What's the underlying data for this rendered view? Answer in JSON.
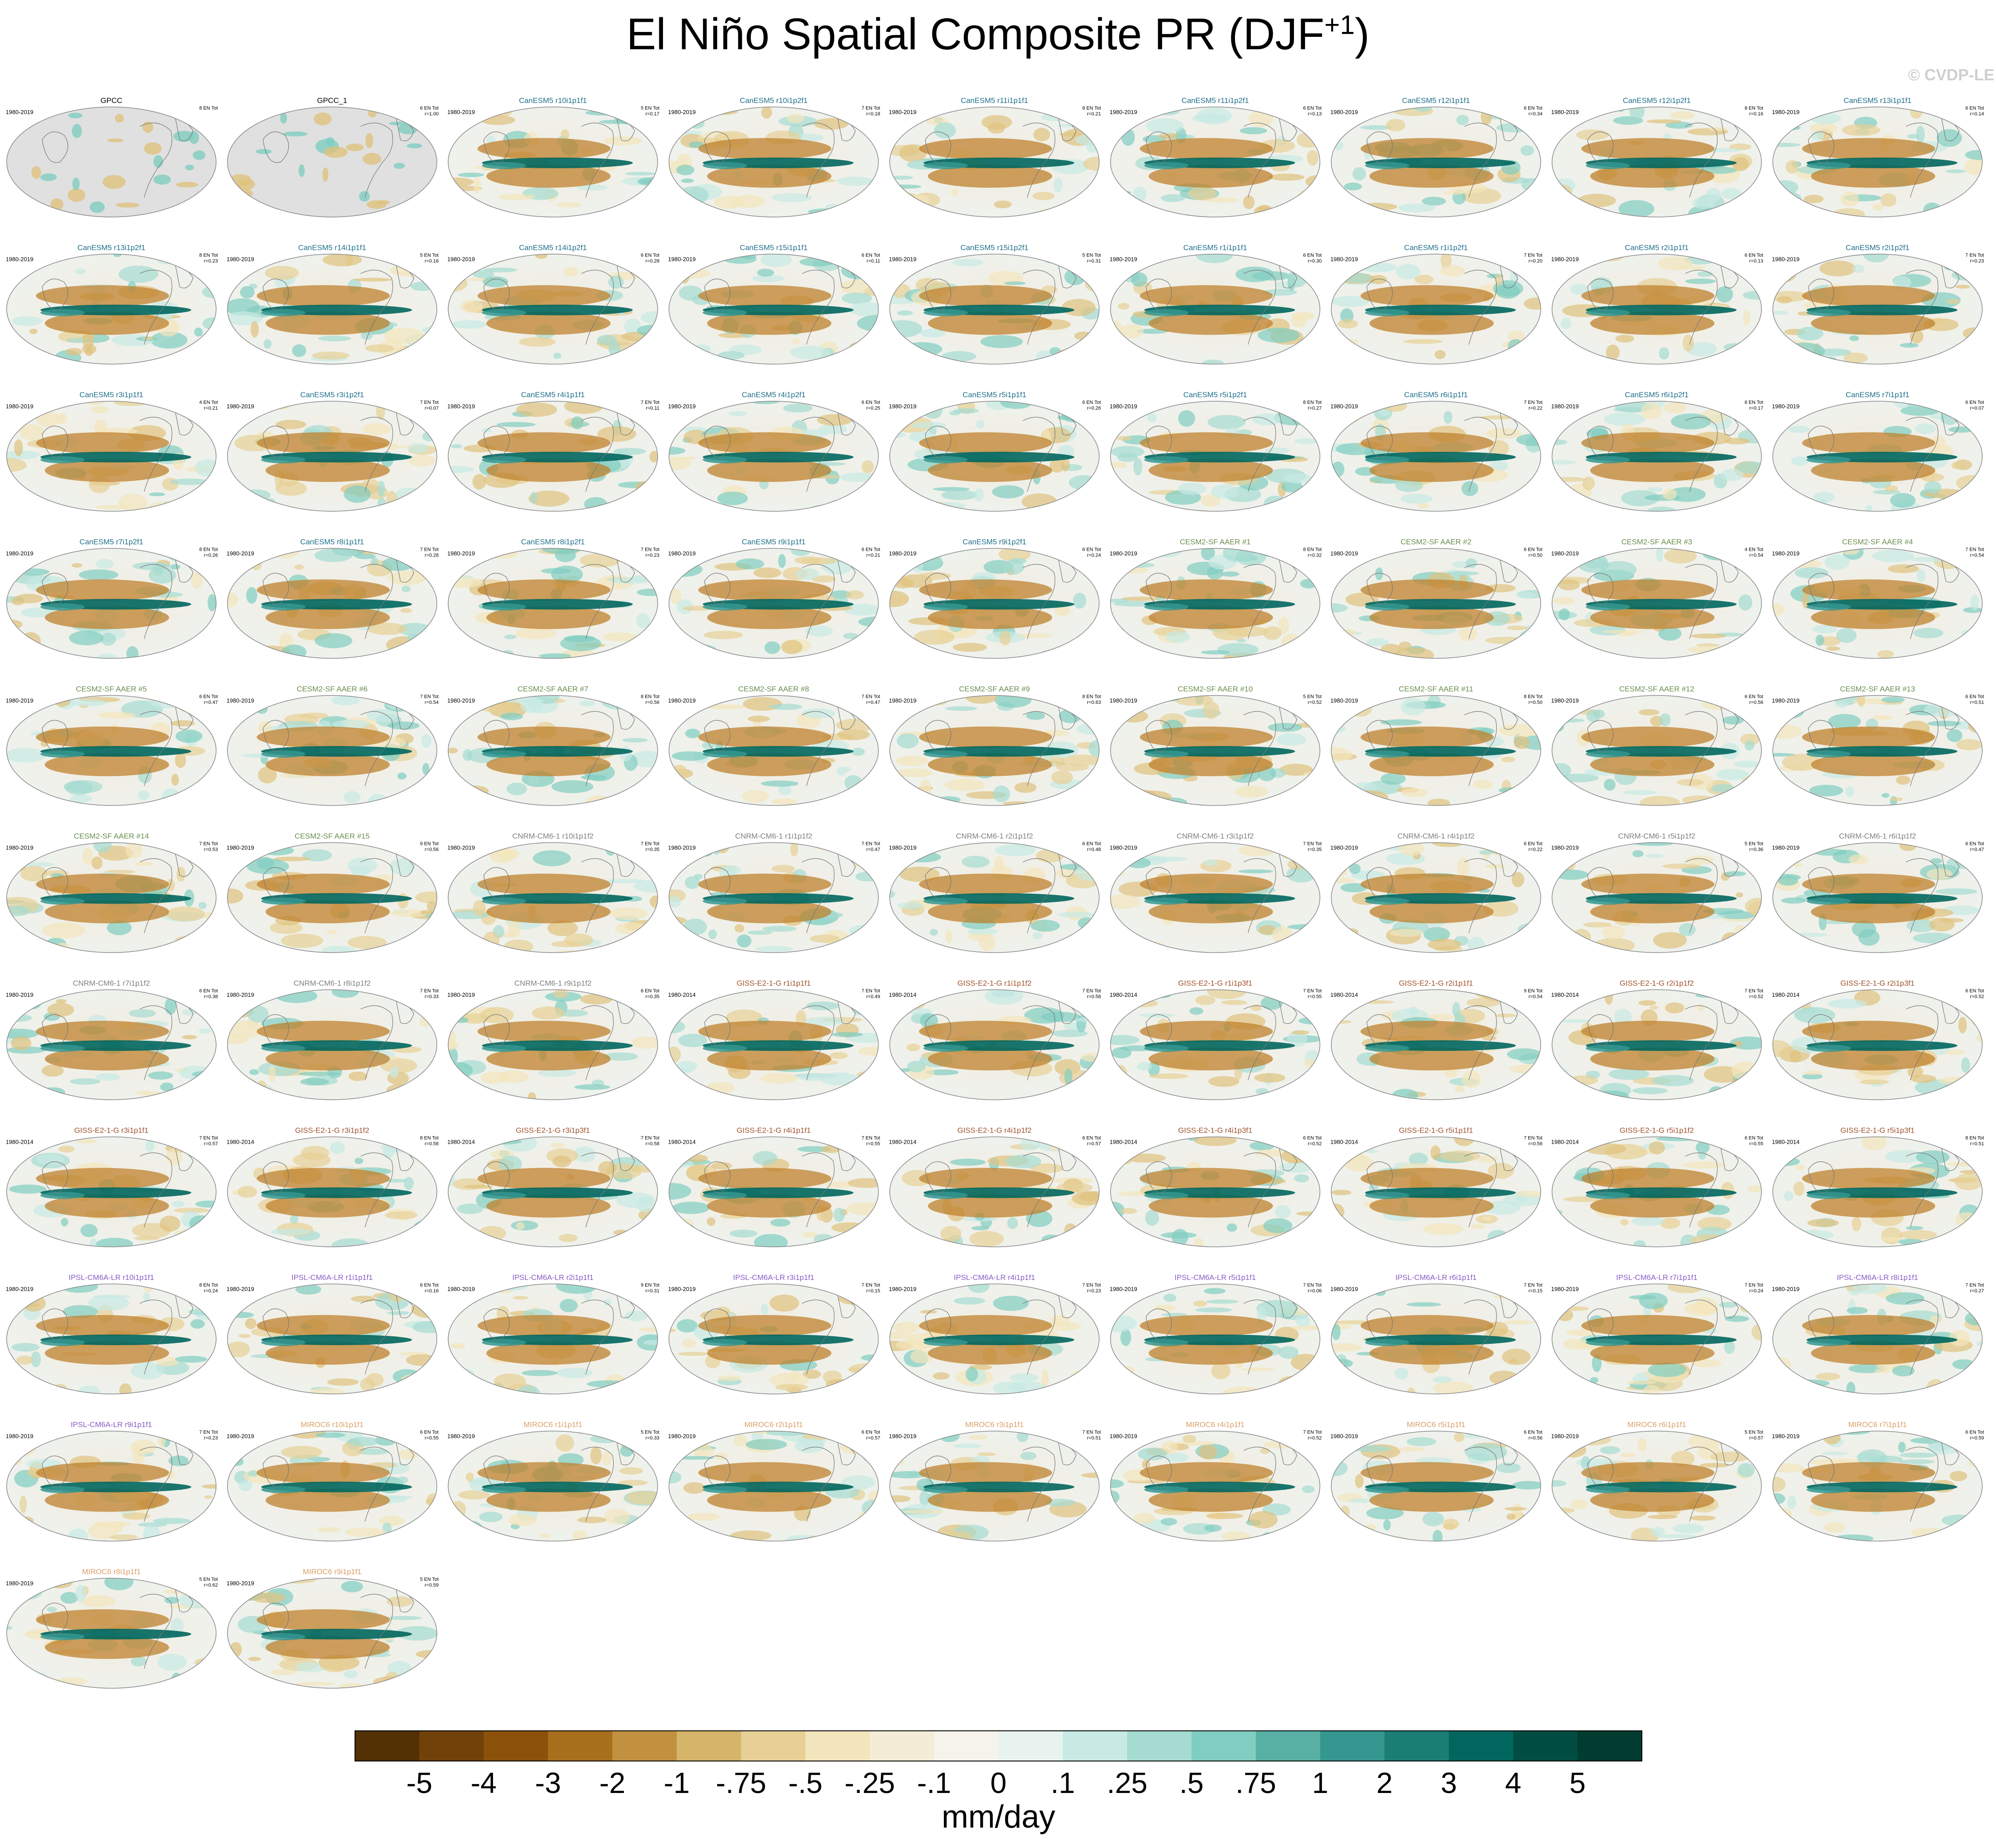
{
  "chart_data": {
    "type": "heatmap",
    "title": "El Niño Spatial Composite PR (DJF",
    "title_superscript": "+1",
    "title_close": ")",
    "watermark": "© CVDP-LE",
    "colorbar": {
      "unit_label": "mm/day",
      "tick_labels": [
        "-5",
        "-4",
        "-3",
        "-2",
        "-1",
        "-.75",
        "-.5",
        "-.25",
        "-.1",
        "0",
        ".1",
        ".25",
        ".5",
        ".75",
        "1",
        "2",
        "3",
        "4",
        "5"
      ],
      "colors": [
        "#543005",
        "#704209",
        "#8c510a",
        "#a8701d",
        "#c2913f",
        "#d5b56a",
        "#e7d096",
        "#f3e5bc",
        "#f5ecd7",
        "#f5f3eb",
        "#e8f3f0",
        "#c7eae4",
        "#a5dbd1",
        "#80cdc1",
        "#58b0a5",
        "#35978f",
        "#1b7e75",
        "#01665e",
        "#024d43",
        "#003c30"
      ]
    },
    "panels": [
      {
        "title": "GPCC",
        "period": "1980-2019",
        "count": "8 EN Tot",
        "corr": "",
        "group": "obs"
      },
      {
        "title": "GPCC_1",
        "period": "",
        "count": "6 EN Tot",
        "corr": "r=1.00",
        "group": "obs"
      },
      {
        "title": "CanESM5 r10i1p1f1",
        "period": "1980-2019",
        "count": "5 EN Tot",
        "corr": "r=0.17",
        "group": "canesm5"
      },
      {
        "title": "CanESM5 r10i1p2f1",
        "period": "1980-2019",
        "count": "7 EN Tot",
        "corr": "r=0.18",
        "group": "canesm5"
      },
      {
        "title": "CanESM5 r11i1p1f1",
        "period": "1980-2019",
        "count": "8 EN Tot",
        "corr": "r=0.21",
        "group": "canesm5"
      },
      {
        "title": "CanESM5 r11i1p2f1",
        "period": "1980-2019",
        "count": "6 EN Tot",
        "corr": "r=0.13",
        "group": "canesm5"
      },
      {
        "title": "CanESM5 r12i1p1f1",
        "period": "1980-2019",
        "count": "6 EN Tot",
        "corr": "r=0.34",
        "group": "canesm5"
      },
      {
        "title": "CanESM5 r12i1p2f1",
        "period": "1980-2019",
        "count": "8 EN Tot",
        "corr": "r=0.16",
        "group": "canesm5"
      },
      {
        "title": "CanESM5 r13i1p1f1",
        "period": "1980-2019",
        "count": "6 EN Tot",
        "corr": "r=0.14",
        "group": "canesm5"
      },
      {
        "title": "CanESM5 r13i1p2f1",
        "period": "1980-2019",
        "count": "8 EN Tot",
        "corr": "r=0.23",
        "group": "canesm5"
      },
      {
        "title": "CanESM5 r14i1p1f1",
        "period": "1980-2019",
        "count": "5 EN Tot",
        "corr": "r=0.16",
        "group": "canesm5"
      },
      {
        "title": "CanESM5 r14i1p2f1",
        "period": "1980-2019",
        "count": "6 EN Tot",
        "corr": "r=0.28",
        "group": "canesm5"
      },
      {
        "title": "CanESM5 r15i1p1f1",
        "period": "1980-2019",
        "count": "6 EN Tot",
        "corr": "r=0.11",
        "group": "canesm5"
      },
      {
        "title": "CanESM5 r15i1p2f1",
        "period": "1980-2019",
        "count": "5 EN Tot",
        "corr": "r=0.31",
        "group": "canesm5"
      },
      {
        "title": "CanESM5 r1i1p1f1",
        "period": "1980-2019",
        "count": "6 EN Tot",
        "corr": "r=0.30",
        "group": "canesm5"
      },
      {
        "title": "CanESM5 r1i1p2f1",
        "period": "1980-2019",
        "count": "7 EN Tot",
        "corr": "r=0.20",
        "group": "canesm5"
      },
      {
        "title": "CanESM5 r2i1p1f1",
        "period": "1980-2019",
        "count": "6 EN Tot",
        "corr": "r=0.13",
        "group": "canesm5"
      },
      {
        "title": "CanESM5 r2i1p2f1",
        "period": "1980-2019",
        "count": "7 EN Tot",
        "corr": "r=0.23",
        "group": "canesm5"
      },
      {
        "title": "CanESM5 r3i1p1f1",
        "period": "1980-2019",
        "count": "4 EN Tot",
        "corr": "r=0.21",
        "group": "canesm5"
      },
      {
        "title": "CanESM5 r3i1p2f1",
        "period": "1980-2019",
        "count": "7 EN Tot",
        "corr": "r=0.07",
        "group": "canesm5"
      },
      {
        "title": "CanESM5 r4i1p1f1",
        "period": "1980-2019",
        "count": "7 EN Tot",
        "corr": "r=0.11",
        "group": "canesm5"
      },
      {
        "title": "CanESM5 r4i1p2f1",
        "period": "1980-2019",
        "count": "6 EN Tot",
        "corr": "r=0.25",
        "group": "canesm5"
      },
      {
        "title": "CanESM5 r5i1p1f1",
        "period": "1980-2019",
        "count": "6 EN Tot",
        "corr": "r=0.26",
        "group": "canesm5"
      },
      {
        "title": "CanESM5 r5i1p2f1",
        "period": "1980-2019",
        "count": "8 EN Tot",
        "corr": "r=0.27",
        "group": "canesm5"
      },
      {
        "title": "CanESM5 r6i1p1f1",
        "period": "1980-2019",
        "count": "7 EN Tot",
        "corr": "r=0.22",
        "group": "canesm5"
      },
      {
        "title": "CanESM5 r6i1p2f1",
        "period": "1980-2019",
        "count": "6 EN Tot",
        "corr": "r=0.17",
        "group": "canesm5"
      },
      {
        "title": "CanESM5 r7i1p1f1",
        "period": "1980-2019",
        "count": "6 EN Tot",
        "corr": "r=0.07",
        "group": "canesm5"
      },
      {
        "title": "CanESM5 r7i1p2f1",
        "period": "1980-2019",
        "count": "8 EN Tot",
        "corr": "r=0.26",
        "group": "canesm5"
      },
      {
        "title": "CanESM5 r8i1p1f1",
        "period": "1980-2019",
        "count": "7 EN Tot",
        "corr": "r=0.28",
        "group": "canesm5"
      },
      {
        "title": "CanESM5 r8i1p2f1",
        "period": "1980-2019",
        "count": "7 EN Tot",
        "corr": "r=0.23",
        "group": "canesm5"
      },
      {
        "title": "CanESM5 r9i1p1f1",
        "period": "1980-2019",
        "count": "6 EN Tot",
        "corr": "r=0.21",
        "group": "canesm5"
      },
      {
        "title": "CanESM5 r9i1p2f1",
        "period": "1980-2019",
        "count": "6 EN Tot",
        "corr": "r=0.24",
        "group": "canesm5"
      },
      {
        "title": "CESM2-SF AAER #1",
        "period": "1980-2019",
        "count": "8 EN Tot",
        "corr": "r=0.32",
        "group": "cesm2"
      },
      {
        "title": "CESM2-SF AAER #2",
        "period": "1980-2019",
        "count": "6 EN Tot",
        "corr": "r=0.50",
        "group": "cesm2"
      },
      {
        "title": "CESM2-SF AAER #3",
        "period": "1980-2019",
        "count": "4 EN Tot",
        "corr": "r=0.54",
        "group": "cesm2"
      },
      {
        "title": "CESM2-SF AAER #4",
        "period": "1980-2019",
        "count": "7 EN Tot",
        "corr": "r=0.54",
        "group": "cesm2"
      },
      {
        "title": "CESM2-SF AAER #5",
        "period": "1980-2019",
        "count": "6 EN Tot",
        "corr": "r=0.47",
        "group": "cesm2"
      },
      {
        "title": "CESM2-SF AAER #6",
        "period": "1980-2019",
        "count": "7 EN Tot",
        "corr": "r=0.54",
        "group": "cesm2"
      },
      {
        "title": "CESM2-SF AAER #7",
        "period": "1980-2019",
        "count": "8 EN Tot",
        "corr": "r=0.56",
        "group": "cesm2"
      },
      {
        "title": "CESM2-SF AAER #8",
        "period": "1980-2019",
        "count": "7 EN Tot",
        "corr": "r=0.47",
        "group": "cesm2"
      },
      {
        "title": "CESM2-SF AAER #9",
        "period": "1980-2019",
        "count": "8 EN Tot",
        "corr": "r=0.63",
        "group": "cesm2"
      },
      {
        "title": "CESM2-SF AAER #10",
        "period": "1980-2019",
        "count": "5 EN Tot",
        "corr": "r=0.52",
        "group": "cesm2"
      },
      {
        "title": "CESM2-SF AAER #11",
        "period": "1980-2019",
        "count": "8 EN Tot",
        "corr": "r=0.50",
        "group": "cesm2"
      },
      {
        "title": "CESM2-SF AAER #12",
        "period": "1980-2019",
        "count": "6 EN Tot",
        "corr": "r=0.56",
        "group": "cesm2"
      },
      {
        "title": "CESM2-SF AAER #13",
        "period": "1980-2019",
        "count": "6 EN Tot",
        "corr": "r=0.51",
        "group": "cesm2"
      },
      {
        "title": "CESM2-SF AAER #14",
        "period": "1980-2019",
        "count": "7 EN Tot",
        "corr": "r=0.53",
        "group": "cesm2"
      },
      {
        "title": "CESM2-SF AAER #15",
        "period": "1980-2019",
        "count": "9 EN Tot",
        "corr": "r=0.56",
        "group": "cesm2"
      },
      {
        "title": "CNRM-CM6-1 r10i1p1f2",
        "period": "1980-2019",
        "count": "7 EN Tot",
        "corr": "r=0.35",
        "group": "cnrm"
      },
      {
        "title": "CNRM-CM6-1 r1i1p1f2",
        "period": "1980-2019",
        "count": "7 EN Tot",
        "corr": "r=0.47",
        "group": "cnrm"
      },
      {
        "title": "CNRM-CM6-1 r2i1p1f2",
        "period": "1980-2019",
        "count": "6 EN Tot",
        "corr": "r=0.48",
        "group": "cnrm"
      },
      {
        "title": "CNRM-CM6-1 r3i1p1f2",
        "period": "1980-2019",
        "count": "7 EN Tot",
        "corr": "r=0.35",
        "group": "cnrm"
      },
      {
        "title": "CNRM-CM6-1 r4i1p1f2",
        "period": "1980-2019",
        "count": "6 EN Tot",
        "corr": "r=0.22",
        "group": "cnrm"
      },
      {
        "title": "CNRM-CM6-1 r5i1p1f2",
        "period": "1980-2019",
        "count": "5 EN Tot",
        "corr": "r=0.36",
        "group": "cnrm"
      },
      {
        "title": "CNRM-CM6-1 r6i1p1f2",
        "period": "1980-2019",
        "count": "6 EN Tot",
        "corr": "r=0.47",
        "group": "cnrm"
      },
      {
        "title": "CNRM-CM6-1 r7i1p1f2",
        "period": "1980-2019",
        "count": "6 EN Tot",
        "corr": "r=0.38",
        "group": "cnrm"
      },
      {
        "title": "CNRM-CM6-1 r8i1p1f2",
        "period": "1980-2019",
        "count": "7 EN Tot",
        "corr": "r=0.33",
        "group": "cnrm"
      },
      {
        "title": "CNRM-CM6-1 r9i1p1f2",
        "period": "1980-2019",
        "count": "6 EN Tot",
        "corr": "r=0.35",
        "group": "cnrm"
      },
      {
        "title": "GISS-E2-1-G r1i1p1f1",
        "period": "1980-2014",
        "count": "7 EN Tot",
        "corr": "r=0.49",
        "group": "giss"
      },
      {
        "title": "GISS-E2-1-G r1i1p1f2",
        "period": "1980-2014",
        "count": "7 EN Tot",
        "corr": "r=0.58",
        "group": "giss"
      },
      {
        "title": "GISS-E2-1-G r1i1p3f1",
        "period": "1980-2014",
        "count": "7 EN Tot",
        "corr": "r=0.55",
        "group": "giss"
      },
      {
        "title": "GISS-E2-1-G r2i1p1f1",
        "period": "1980-2014",
        "count": "9 EN Tot",
        "corr": "r=0.54",
        "group": "giss"
      },
      {
        "title": "GISS-E2-1-G r2i1p1f2",
        "period": "1980-2014",
        "count": "7 EN Tot",
        "corr": "r=0.52",
        "group": "giss"
      },
      {
        "title": "GISS-E2-1-G r2i1p3f1",
        "period": "1980-2014",
        "count": "6 EN Tot",
        "corr": "r=0.52",
        "group": "giss"
      },
      {
        "title": "GISS-E2-1-G r3i1p1f1",
        "period": "1980-2014",
        "count": "7 EN Tot",
        "corr": "r=0.57",
        "group": "giss"
      },
      {
        "title": "GISS-E2-1-G r3i1p1f2",
        "period": "1980-2014",
        "count": "8 EN Tot",
        "corr": "r=0.58",
        "group": "giss"
      },
      {
        "title": "GISS-E2-1-G r3i1p3f1",
        "period": "1980-2014",
        "count": "7 EN Tot",
        "corr": "r=0.58",
        "group": "giss"
      },
      {
        "title": "GISS-E2-1-G r4i1p1f1",
        "period": "1980-2014",
        "count": "7 EN Tot",
        "corr": "r=0.55",
        "group": "giss"
      },
      {
        "title": "GISS-E2-1-G r4i1p1f2",
        "period": "1980-2014",
        "count": "6 EN Tot",
        "corr": "r=0.57",
        "group": "giss"
      },
      {
        "title": "GISS-E2-1-G r4i1p3f1",
        "period": "1980-2014",
        "count": "6 EN Tot",
        "corr": "r=0.52",
        "group": "giss"
      },
      {
        "title": "GISS-E2-1-G r5i1p1f1",
        "period": "1980-2014",
        "count": "7 EN Tot",
        "corr": "r=0.56",
        "group": "giss"
      },
      {
        "title": "GISS-E2-1-G r5i1p1f2",
        "period": "1980-2014",
        "count": "6 EN Tot",
        "corr": "r=0.55",
        "group": "giss"
      },
      {
        "title": "GISS-E2-1-G r5i1p3f1",
        "period": "1980-2014",
        "count": "8 EN Tot",
        "corr": "r=0.51",
        "group": "giss"
      },
      {
        "title": "IPSL-CM6A-LR r10i1p1f1",
        "period": "1980-2019",
        "count": "8 EN Tot",
        "corr": "r=0.24",
        "group": "ipsl"
      },
      {
        "title": "IPSL-CM6A-LR r1i1p1f1",
        "period": "1980-2019",
        "count": "6 EN Tot",
        "corr": "r=0.16",
        "group": "ipsl"
      },
      {
        "title": "IPSL-CM6A-LR r2i1p1f1",
        "period": "1980-2019",
        "count": "9 EN Tot",
        "corr": "r=0.31",
        "group": "ipsl"
      },
      {
        "title": "IPSL-CM6A-LR r3i1p1f1",
        "period": "1980-2019",
        "count": "7 EN Tot",
        "corr": "r=0.15",
        "group": "ipsl"
      },
      {
        "title": "IPSL-CM6A-LR r4i1p1f1",
        "period": "1980-2019",
        "count": "7 EN Tot",
        "corr": "r=0.23",
        "group": "ipsl"
      },
      {
        "title": "IPSL-CM6A-LR r5i1p1f1",
        "period": "1980-2019",
        "count": "7 EN Tot",
        "corr": "r=0.06",
        "group": "ipsl"
      },
      {
        "title": "IPSL-CM6A-LR r6i1p1f1",
        "period": "1980-2019",
        "count": "7 EN Tot",
        "corr": "r=0.15",
        "group": "ipsl"
      },
      {
        "title": "IPSL-CM6A-LR r7i1p1f1",
        "period": "1980-2019",
        "count": "7 EN Tot",
        "corr": "r=0.24",
        "group": "ipsl"
      },
      {
        "title": "IPSL-CM6A-LR r8i1p1f1",
        "period": "1980-2019",
        "count": "7 EN Tot",
        "corr": "r=0.27",
        "group": "ipsl"
      },
      {
        "title": "IPSL-CM6A-LR r9i1p1f1",
        "period": "1980-2019",
        "count": "7 EN Tot",
        "corr": "r=0.23",
        "group": "ipsl"
      },
      {
        "title": "MIROC6 r10i1p1f1",
        "period": "1980-2019",
        "count": "6 EN Tot",
        "corr": "r=0.55",
        "group": "miroc"
      },
      {
        "title": "MIROC6 r1i1p1f1",
        "period": "1980-2019",
        "count": "5 EN Tot",
        "corr": "r=0.33",
        "group": "miroc"
      },
      {
        "title": "MIROC6 r2i1p1f1",
        "period": "1980-2019",
        "count": "6 EN Tot",
        "corr": "r=0.57",
        "group": "miroc"
      },
      {
        "title": "MIROC6 r3i1p1f1",
        "period": "1980-2019",
        "count": "7 EN Tot",
        "corr": "r=0.51",
        "group": "miroc"
      },
      {
        "title": "MIROC6 r4i1p1f1",
        "period": "1980-2019",
        "count": "7 EN Tot",
        "corr": "r=0.52",
        "group": "miroc"
      },
      {
        "title": "MIROC6 r5i1p1f1",
        "period": "1980-2019",
        "count": "6 EN Tot",
        "corr": "r=0.56",
        "group": "miroc"
      },
      {
        "title": "MIROC6 r6i1p1f1",
        "period": "1980-2019",
        "count": "5 EN Tot",
        "corr": "r=0.57",
        "group": "miroc"
      },
      {
        "title": "MIROC6 r7i1p1f1",
        "period": "1980-2019",
        "count": "6 EN Tot",
        "corr": "r=0.59",
        "group": "miroc"
      },
      {
        "title": "MIROC6 r8i1p1f1",
        "period": "1980-2019",
        "count": "5 EN Tot",
        "corr": "r=0.62",
        "group": "miroc"
      },
      {
        "title": "MIROC6 r9i1p1f1",
        "period": "1980-2019",
        "count": "5 EN Tot",
        "corr": "r=0.59",
        "group": "miroc"
      }
    ],
    "group_colors": {
      "obs": "#000000",
      "canesm5": "#1f6f8b",
      "cesm2": "#6b8e4e",
      "cnrm": "#7f7f7f",
      "giss": "#a0522d",
      "ipsl": "#8a5cc4",
      "miroc": "#d9a066"
    }
  }
}
